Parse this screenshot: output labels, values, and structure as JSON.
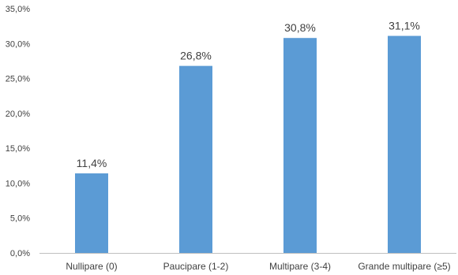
{
  "chart_data": {
    "type": "bar",
    "categories": [
      "Nullipare (0)",
      "Paucipare (1-2)",
      "Multipare (3-4)",
      "Grande multipare (≥5)"
    ],
    "values": [
      11.4,
      26.8,
      30.8,
      31.1
    ],
    "data_labels": [
      "11,4%",
      "26,8%",
      "30,8%",
      "31,1%"
    ],
    "y_ticks": [
      0,
      5,
      10,
      15,
      20,
      25,
      30,
      35
    ],
    "y_tick_labels": [
      "0,0%",
      "5,0%",
      "10,0%",
      "15,0%",
      "20,0%",
      "25,0%",
      "30,0%",
      "35,0%"
    ],
    "ylim": [
      0,
      35
    ],
    "title": "",
    "xlabel": "",
    "ylabel": "",
    "grid": false,
    "legend": "none",
    "bar_color": "#5b9bd5",
    "axis_color": "#bfbfbf",
    "text_color": "#404040"
  }
}
